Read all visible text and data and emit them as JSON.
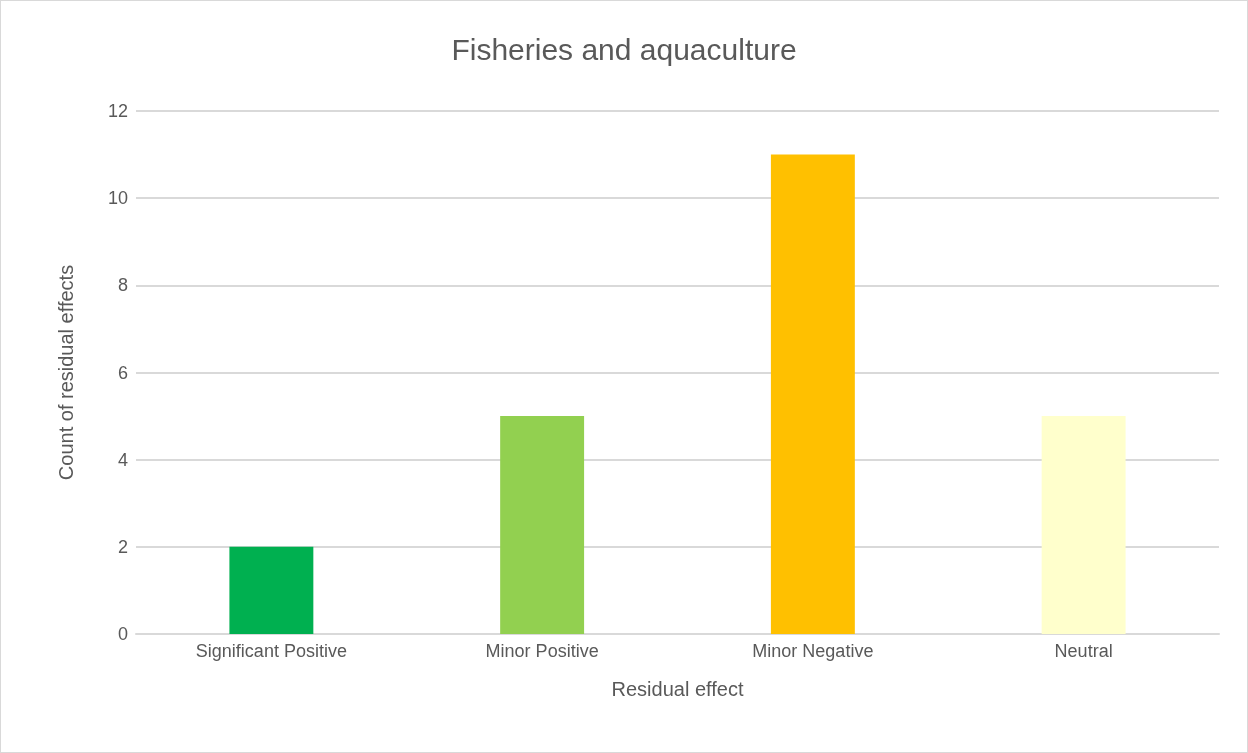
{
  "chart_data": {
    "type": "bar",
    "title": "Fisheries and aquaculture",
    "xlabel": "Residual effect",
    "ylabel": "Count of residual effects",
    "categories": [
      "Significant Positive",
      "Minor Positive",
      "Minor Negative",
      "Neutral"
    ],
    "values": [
      2,
      5,
      11,
      5
    ],
    "colors": [
      "#00b050",
      "#92d050",
      "#ffc000",
      "#ffffcc"
    ],
    "ylim": [
      0,
      12
    ],
    "yticks": [
      0,
      2,
      4,
      6,
      8,
      10,
      12
    ],
    "grid": "y"
  }
}
